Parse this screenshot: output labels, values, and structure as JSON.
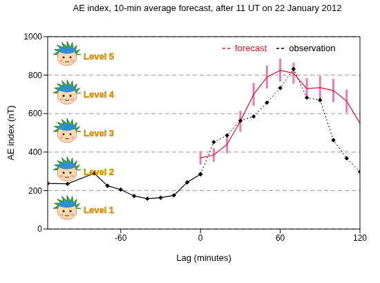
{
  "chart_data": {
    "type": "line",
    "title": "AE index, 10-min average forecast, after 11 UT on 22 January 2012",
    "x_label": "Lag (minutes)",
    "y_label": "AE index (nT)",
    "x": [
      -115,
      -100,
      -80,
      -70,
      -60,
      -50,
      -40,
      -30,
      -20,
      -10,
      0,
      10,
      20,
      30,
      40,
      50,
      60,
      70,
      80,
      90,
      100,
      110,
      120
    ],
    "series": [
      {
        "name": "forecast",
        "color": "#e0102a",
        "line_style": "solid",
        "marker": "none",
        "values": [
          null,
          null,
          null,
          null,
          null,
          null,
          null,
          null,
          null,
          null,
          370,
          385,
          440,
          560,
          700,
          790,
          825,
          810,
          730,
          735,
          720,
          665,
          550
        ],
        "errors": [
          null,
          null,
          null,
          null,
          null,
          null,
          null,
          null,
          null,
          null,
          35,
          35,
          45,
          55,
          60,
          60,
          60,
          55,
          55,
          60,
          60,
          60,
          null
        ]
      },
      {
        "name": "observation",
        "color": "#000000",
        "line_style": "solid",
        "marker": "diamond",
        "values": [
          237,
          235,
          290,
          225,
          205,
          172,
          158,
          163,
          175,
          243,
          285,
          null,
          null,
          null,
          null,
          null,
          null,
          null,
          null,
          null,
          null,
          null,
          null
        ]
      },
      {
        "name": "observation",
        "color": "#000000",
        "line_style": "dotted",
        "marker": "diamond",
        "values": [
          null,
          null,
          null,
          null,
          null,
          null,
          null,
          null,
          null,
          null,
          285,
          452,
          487,
          563,
          585,
          657,
          733,
          832,
          683,
          670,
          462,
          368,
          298
        ]
      }
    ],
    "xlim": [
      -115,
      120
    ],
    "xticks": [
      -60,
      0,
      60,
      120
    ],
    "ylim": [
      0,
      1000
    ],
    "yticks": [
      0,
      200,
      400,
      600,
      800,
      1000
    ],
    "grid": true,
    "annotations": [
      "Level 1",
      "Level 2",
      "Level 3",
      "Level 4",
      "Level 5"
    ]
  }
}
